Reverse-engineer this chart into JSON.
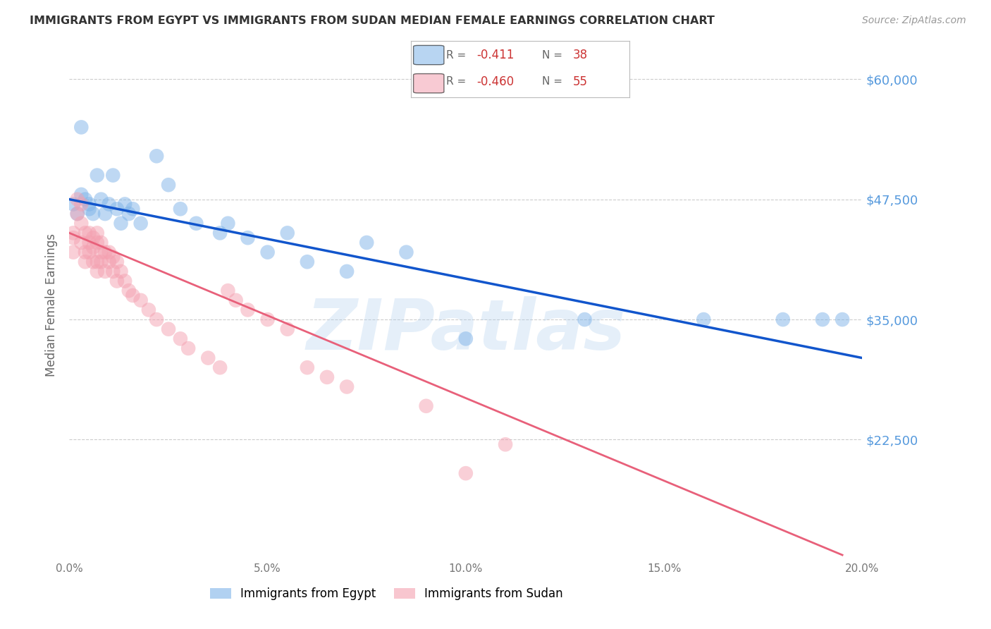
{
  "title": "IMMIGRANTS FROM EGYPT VS IMMIGRANTS FROM SUDAN MEDIAN FEMALE EARNINGS CORRELATION CHART",
  "source": "Source: ZipAtlas.com",
  "ylabel": "Median Female Earnings",
  "x_min": 0.0,
  "x_max": 0.2,
  "y_min": 10000,
  "y_max": 63000,
  "yticks": [
    22500,
    35000,
    47500,
    60000
  ],
  "ytick_labels": [
    "$22,500",
    "$35,000",
    "$47,500",
    "$60,000"
  ],
  "xticks": [
    0.0,
    0.05,
    0.1,
    0.15,
    0.2
  ],
  "xtick_labels": [
    "0.0%",
    "5.0%",
    "10.0%",
    "15.0%",
    "20.0%"
  ],
  "egypt_color": "#7EB3E8",
  "sudan_color": "#F4A0B0",
  "egypt_line_color": "#1155CC",
  "sudan_line_color": "#E8607A",
  "egypt_R": -0.411,
  "egypt_N": 38,
  "sudan_R": -0.46,
  "sudan_N": 55,
  "egypt_scatter_x": [
    0.001,
    0.002,
    0.003,
    0.003,
    0.004,
    0.005,
    0.005,
    0.006,
    0.007,
    0.008,
    0.009,
    0.01,
    0.011,
    0.012,
    0.013,
    0.014,
    0.015,
    0.016,
    0.018,
    0.022,
    0.025,
    0.028,
    0.032,
    0.038,
    0.04,
    0.045,
    0.05,
    0.055,
    0.06,
    0.07,
    0.075,
    0.085,
    0.1,
    0.13,
    0.16,
    0.18,
    0.19,
    0.195
  ],
  "egypt_scatter_y": [
    47000,
    46000,
    55000,
    48000,
    47500,
    47000,
    46500,
    46000,
    50000,
    47500,
    46000,
    47000,
    50000,
    46500,
    45000,
    47000,
    46000,
    46500,
    45000,
    52000,
    49000,
    46500,
    45000,
    44000,
    45000,
    43500,
    42000,
    44000,
    41000,
    40000,
    43000,
    42000,
    33000,
    35000,
    35000,
    35000,
    35000,
    35000
  ],
  "sudan_scatter_x": [
    0.001,
    0.001,
    0.001,
    0.002,
    0.002,
    0.003,
    0.003,
    0.003,
    0.004,
    0.004,
    0.004,
    0.005,
    0.005,
    0.005,
    0.006,
    0.006,
    0.006,
    0.007,
    0.007,
    0.007,
    0.007,
    0.008,
    0.008,
    0.008,
    0.009,
    0.009,
    0.01,
    0.01,
    0.011,
    0.011,
    0.012,
    0.012,
    0.013,
    0.014,
    0.015,
    0.016,
    0.018,
    0.02,
    0.022,
    0.025,
    0.028,
    0.03,
    0.035,
    0.038,
    0.04,
    0.042,
    0.045,
    0.05,
    0.055,
    0.06,
    0.065,
    0.07,
    0.09,
    0.1,
    0.11
  ],
  "sudan_scatter_y": [
    44000,
    43500,
    42000,
    47500,
    46000,
    47000,
    45000,
    43000,
    44000,
    42000,
    41000,
    44000,
    43000,
    42000,
    43500,
    42500,
    41000,
    44000,
    43000,
    41000,
    40000,
    43000,
    42000,
    41000,
    42000,
    40000,
    42000,
    41000,
    41500,
    40000,
    41000,
    39000,
    40000,
    39000,
    38000,
    37500,
    37000,
    36000,
    35000,
    34000,
    33000,
    32000,
    31000,
    30000,
    38000,
    37000,
    36000,
    35000,
    34000,
    30000,
    29000,
    28000,
    26000,
    19000,
    22000
  ],
  "background_color": "#ffffff",
  "grid_color": "#cccccc",
  "watermark": "ZIPatlas",
  "watermark_color": "#aaccee",
  "legend_egypt_label": "Immigrants from Egypt",
  "legend_sudan_label": "Immigrants from Sudan",
  "egypt_line_x": [
    0.0,
    0.2
  ],
  "egypt_line_y": [
    47500,
    31000
  ],
  "sudan_line_x": [
    0.0,
    0.195
  ],
  "sudan_line_y": [
    44000,
    10500
  ]
}
